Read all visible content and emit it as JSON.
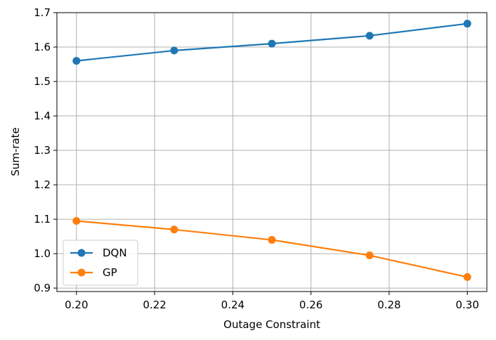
{
  "chart_data": {
    "type": "line",
    "title": "",
    "xlabel": "Outage Constraint",
    "ylabel": "Sum-rate",
    "xlim": [
      0.195,
      0.305
    ],
    "ylim": [
      0.89,
      1.7
    ],
    "x": [
      0.2,
      0.225,
      0.25,
      0.275,
      0.3
    ],
    "xticks": [
      0.2,
      0.22,
      0.24,
      0.26,
      0.28,
      0.3
    ],
    "xtick_labels": [
      "0.20",
      "0.22",
      "0.24",
      "0.26",
      "0.28",
      "0.30"
    ],
    "yticks": [
      0.9,
      1.0,
      1.1,
      1.2,
      1.3,
      1.4,
      1.5,
      1.6,
      1.7
    ],
    "ytick_labels": [
      "0.9",
      "1.0",
      "1.1",
      "1.2",
      "1.3",
      "1.4",
      "1.5",
      "1.6",
      "1.7"
    ],
    "grid": true,
    "legend_position": "lower-left",
    "series": [
      {
        "name": "DQN",
        "color": "#1f77b4",
        "values": [
          1.56,
          1.59,
          1.61,
          1.633,
          1.668
        ]
      },
      {
        "name": "GP",
        "color": "#ff7f0e",
        "values": [
          1.095,
          1.07,
          1.04,
          0.995,
          0.932
        ]
      }
    ]
  }
}
